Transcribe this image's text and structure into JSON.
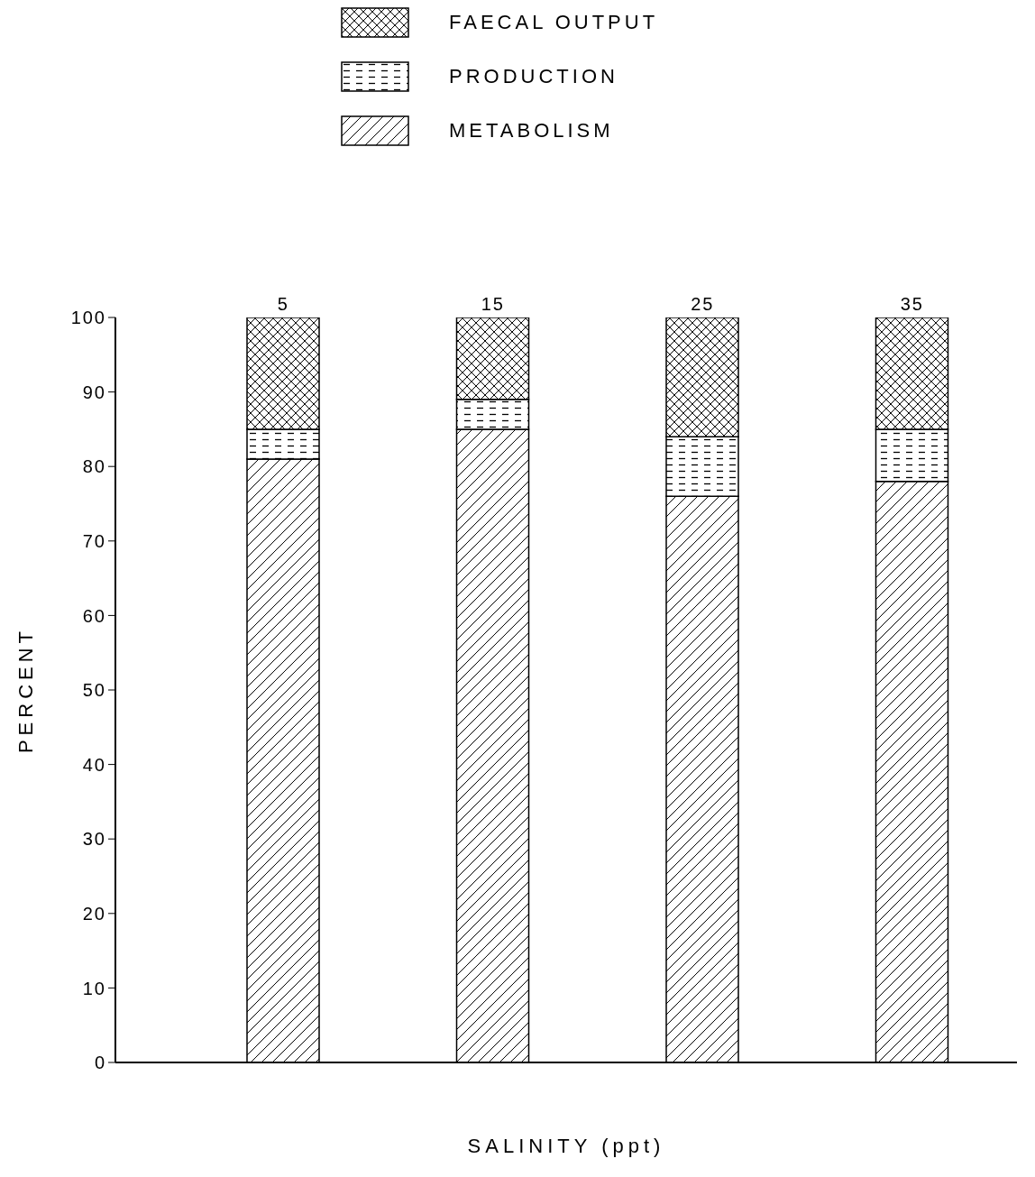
{
  "chart_data": {
    "type": "bar",
    "stacked": true,
    "xlabel": "SALINITY (ppt)",
    "ylabel": "PERCENT",
    "categories": [
      "5",
      "15",
      "25",
      "35"
    ],
    "series": [
      {
        "name": "METABOLISM",
        "color": "#000000",
        "values": [
          81,
          85,
          76,
          78
        ]
      },
      {
        "name": "PRODUCTION",
        "color": "#000000",
        "values": [
          4,
          4,
          8,
          7
        ]
      },
      {
        "name": "FAECAL OUTPUT",
        "color": "#000000",
        "values": [
          15,
          11,
          16,
          15
        ]
      }
    ],
    "ylim": [
      0,
      100
    ],
    "yticks": [
      0,
      10,
      20,
      30,
      40,
      50,
      60,
      70,
      80,
      90,
      100
    ],
    "grid": false,
    "legend": "top"
  }
}
